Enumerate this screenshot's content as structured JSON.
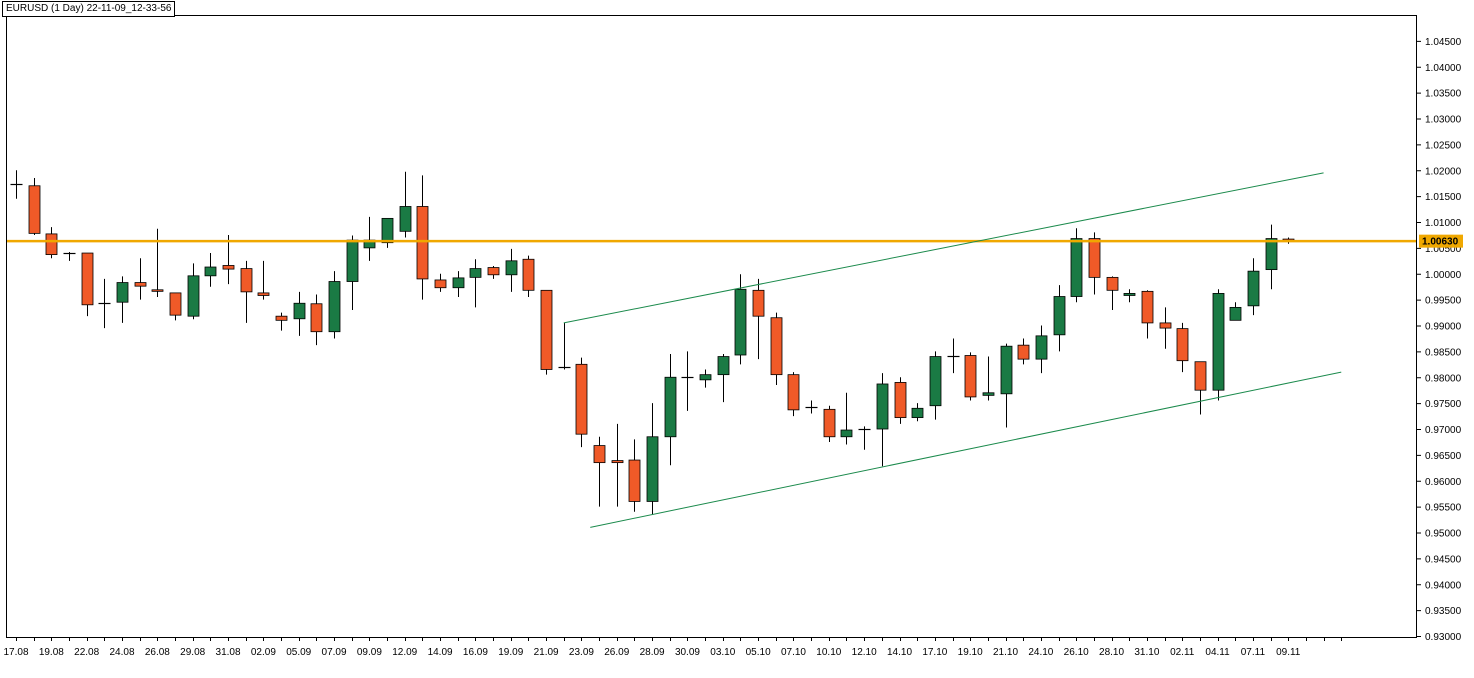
{
  "window_title": "EURUSD (1 Day) 22-11-09_12-33-56",
  "price_label": "1.00630",
  "colors": {
    "bull": "#1a7a44",
    "bear": "#f05a28",
    "level": "#f0a800",
    "channel": "#1b8a4c",
    "axis": "#000000",
    "background": "#ffffff"
  },
  "chart_data": {
    "type": "candlestick",
    "symbol": "EURUSD",
    "timeframe": "1 Day",
    "ylim": [
      0.93,
      1.05
    ],
    "y_ticks": [
      "1.04500",
      "1.04000",
      "1.03500",
      "1.03000",
      "1.02500",
      "1.02000",
      "1.01500",
      "1.01000",
      "1.00500",
      "1.00000",
      "0.99500",
      "0.99000",
      "0.98500",
      "0.98000",
      "0.97500",
      "0.97000",
      "0.96500",
      "0.96000",
      "0.95500",
      "0.95000",
      "0.94500",
      "0.94000",
      "0.93500",
      "0.93000"
    ],
    "x_labels": [
      {
        "index": 0,
        "text": "17.08"
      },
      {
        "index": 2,
        "text": "19.08"
      },
      {
        "index": 4,
        "text": "22.08"
      },
      {
        "index": 6,
        "text": "24.08"
      },
      {
        "index": 8,
        "text": "26.08"
      },
      {
        "index": 10,
        "text": "29.08"
      },
      {
        "index": 12,
        "text": "31.08"
      },
      {
        "index": 14,
        "text": "02.09"
      },
      {
        "index": 16,
        "text": "05.09"
      },
      {
        "index": 18,
        "text": "07.09"
      },
      {
        "index": 20,
        "text": "09.09"
      },
      {
        "index": 22,
        "text": "12.09"
      },
      {
        "index": 24,
        "text": "14.09"
      },
      {
        "index": 26,
        "text": "16.09"
      },
      {
        "index": 28,
        "text": "19.09"
      },
      {
        "index": 30,
        "text": "21.09"
      },
      {
        "index": 32,
        "text": "23.09"
      },
      {
        "index": 34,
        "text": "26.09"
      },
      {
        "index": 36,
        "text": "28.09"
      },
      {
        "index": 38,
        "text": "30.09"
      },
      {
        "index": 40,
        "text": "03.10"
      },
      {
        "index": 42,
        "text": "05.10"
      },
      {
        "index": 44,
        "text": "07.10"
      },
      {
        "index": 46,
        "text": "10.10"
      },
      {
        "index": 48,
        "text": "12.10"
      },
      {
        "index": 50,
        "text": "14.10"
      },
      {
        "index": 52,
        "text": "17.10"
      },
      {
        "index": 54,
        "text": "19.10"
      },
      {
        "index": 56,
        "text": "21.10"
      },
      {
        "index": 58,
        "text": "24.10"
      },
      {
        "index": 60,
        "text": "26.10"
      },
      {
        "index": 62,
        "text": "28.10"
      },
      {
        "index": 64,
        "text": "31.10"
      },
      {
        "index": 66,
        "text": "02.11"
      },
      {
        "index": 68,
        "text": "04.11"
      },
      {
        "index": 70,
        "text": "07.11"
      },
      {
        "index": 72,
        "text": "09.11"
      }
    ],
    "candles": [
      {
        "o": 1.0173,
        "h": 1.02,
        "l": 1.0145,
        "c": 1.0173
      },
      {
        "o": 1.017,
        "h": 1.0185,
        "l": 1.0075,
        "c": 1.0078
      },
      {
        "o": 1.0077,
        "h": 1.009,
        "l": 1.003,
        "c": 1.0037
      },
      {
        "o": 1.004,
        "h": 1.0042,
        "l": 1.0025,
        "c": 1.0038
      },
      {
        "o": 1.004,
        "h": 1.004,
        "l": 0.9918,
        "c": 0.994
      },
      {
        "o": 0.9942,
        "h": 0.999,
        "l": 0.9895,
        "c": 0.9944
      },
      {
        "o": 0.9945,
        "h": 0.9995,
        "l": 0.9905,
        "c": 0.9983
      },
      {
        "o": 0.9983,
        "h": 1.003,
        "l": 0.995,
        "c": 0.9976
      },
      {
        "o": 0.9969,
        "h": 1.0087,
        "l": 0.9955,
        "c": 0.9966
      },
      {
        "o": 0.9963,
        "h": 0.9963,
        "l": 0.991,
        "c": 0.992
      },
      {
        "o": 0.9918,
        "h": 1.002,
        "l": 0.9912,
        "c": 0.9996
      },
      {
        "o": 0.9996,
        "h": 1.004,
        "l": 0.9975,
        "c": 1.0013
      },
      {
        "o": 1.0016,
        "h": 1.0075,
        "l": 0.998,
        "c": 1.0009
      },
      {
        "o": 1.001,
        "h": 1.0025,
        "l": 0.9905,
        "c": 0.9965
      },
      {
        "o": 0.9963,
        "h": 1.0025,
        "l": 0.995,
        "c": 0.9958
      },
      {
        "o": 0.9918,
        "h": 0.9925,
        "l": 0.989,
        "c": 0.991
      },
      {
        "o": 0.9913,
        "h": 0.9965,
        "l": 0.988,
        "c": 0.9943
      },
      {
        "o": 0.9942,
        "h": 0.996,
        "l": 0.9862,
        "c": 0.9888
      },
      {
        "o": 0.9888,
        "h": 1.0005,
        "l": 0.9875,
        "c": 0.9985
      },
      {
        "o": 0.9985,
        "h": 1.0074,
        "l": 0.993,
        "c": 1.0065
      },
      {
        "o": 1.005,
        "h": 1.011,
        "l": 1.0025,
        "c": 1.0065
      },
      {
        "o": 1.006,
        "h": 1.0095,
        "l": 1.005,
        "c": 1.0107
      },
      {
        "o": 1.0082,
        "h": 1.0197,
        "l": 1.007,
        "c": 1.013
      },
      {
        "o": 1.013,
        "h": 1.019,
        "l": 0.995,
        "c": 0.999
      },
      {
        "o": 0.9988,
        "h": 1.0,
        "l": 0.9965,
        "c": 0.9973
      },
      {
        "o": 0.9973,
        "h": 1.0005,
        "l": 0.9955,
        "c": 0.9992
      },
      {
        "o": 0.9993,
        "h": 1.0028,
        "l": 0.9935,
        "c": 1.001
      },
      {
        "o": 1.0012,
        "h": 1.0015,
        "l": 0.999,
        "c": 0.9998
      },
      {
        "o": 0.9998,
        "h": 1.0048,
        "l": 0.9965,
        "c": 1.0025
      },
      {
        "o": 1.0028,
        "h": 1.0035,
        "l": 0.9955,
        "c": 0.9968
      },
      {
        "o": 0.9968,
        "h": 0.9968,
        "l": 0.9805,
        "c": 0.9815
      },
      {
        "o": 0.982,
        "h": 0.9905,
        "l": 0.9815,
        "c": 0.982
      },
      {
        "o": 0.9825,
        "h": 0.9838,
        "l": 0.9665,
        "c": 0.969
      },
      {
        "o": 0.9668,
        "h": 0.9685,
        "l": 0.955,
        "c": 0.9635
      },
      {
        "o": 0.9639,
        "h": 0.971,
        "l": 0.955,
        "c": 0.9635
      },
      {
        "o": 0.964,
        "h": 0.968,
        "l": 0.954,
        "c": 0.956
      },
      {
        "o": 0.956,
        "h": 0.975,
        "l": 0.9535,
        "c": 0.9685
      },
      {
        "o": 0.9685,
        "h": 0.9845,
        "l": 0.963,
        "c": 0.98
      },
      {
        "o": 0.98,
        "h": 0.985,
        "l": 0.9735,
        "c": 0.98
      },
      {
        "o": 0.9795,
        "h": 0.9815,
        "l": 0.978,
        "c": 0.9805
      },
      {
        "o": 0.9805,
        "h": 0.9845,
        "l": 0.9752,
        "c": 0.984
      },
      {
        "o": 0.9843,
        "h": 0.9999,
        "l": 0.9825,
        "c": 0.997
      },
      {
        "o": 0.9968,
        "h": 0.999,
        "l": 0.9835,
        "c": 0.9918
      },
      {
        "o": 0.9915,
        "h": 0.9925,
        "l": 0.9785,
        "c": 0.9805
      },
      {
        "o": 0.9805,
        "h": 0.981,
        "l": 0.9725,
        "c": 0.9737
      },
      {
        "o": 0.974,
        "h": 0.9755,
        "l": 0.973,
        "c": 0.9742
      },
      {
        "o": 0.9738,
        "h": 0.9745,
        "l": 0.9675,
        "c": 0.9685
      },
      {
        "o": 0.9685,
        "h": 0.977,
        "l": 0.967,
        "c": 0.9698
      },
      {
        "o": 0.97,
        "h": 0.9705,
        "l": 0.966,
        "c": 0.97
      },
      {
        "o": 0.97,
        "h": 0.9808,
        "l": 0.9628,
        "c": 0.9787
      },
      {
        "o": 0.979,
        "h": 0.98,
        "l": 0.971,
        "c": 0.9722
      },
      {
        "o": 0.9722,
        "h": 0.975,
        "l": 0.9715,
        "c": 0.974
      },
      {
        "o": 0.9745,
        "h": 0.985,
        "l": 0.9718,
        "c": 0.984
      },
      {
        "o": 0.9842,
        "h": 0.9875,
        "l": 0.9808,
        "c": 0.984
      },
      {
        "o": 0.9842,
        "h": 0.9848,
        "l": 0.9755,
        "c": 0.9762
      },
      {
        "o": 0.9765,
        "h": 0.984,
        "l": 0.9755,
        "c": 0.977
      },
      {
        "o": 0.9768,
        "h": 0.9865,
        "l": 0.9703,
        "c": 0.986
      },
      {
        "o": 0.9862,
        "h": 0.9875,
        "l": 0.9825,
        "c": 0.9835
      },
      {
        "o": 0.9835,
        "h": 0.99,
        "l": 0.9808,
        "c": 0.988
      },
      {
        "o": 0.9882,
        "h": 0.9978,
        "l": 0.985,
        "c": 0.9956
      },
      {
        "o": 0.9956,
        "h": 1.0088,
        "l": 0.9945,
        "c": 1.0068
      },
      {
        "o": 1.0068,
        "h": 1.008,
        "l": 0.996,
        "c": 0.9993
      },
      {
        "o": 0.9993,
        "h": 0.9995,
        "l": 0.993,
        "c": 0.9968
      },
      {
        "o": 0.9958,
        "h": 0.997,
        "l": 0.9945,
        "c": 0.9962
      },
      {
        "o": 0.9966,
        "h": 0.9968,
        "l": 0.9875,
        "c": 0.9905
      },
      {
        "o": 0.9905,
        "h": 0.9935,
        "l": 0.9855,
        "c": 0.9895
      },
      {
        "o": 0.9894,
        "h": 0.9905,
        "l": 0.981,
        "c": 0.9832
      },
      {
        "o": 0.983,
        "h": 0.983,
        "l": 0.9728,
        "c": 0.9775
      },
      {
        "o": 0.9775,
        "h": 0.997,
        "l": 0.9755,
        "c": 0.9962
      },
      {
        "o": 0.991,
        "h": 0.9945,
        "l": 0.991,
        "c": 0.9935
      },
      {
        "o": 0.9938,
        "h": 1.003,
        "l": 0.992,
        "c": 1.0005
      },
      {
        "o": 1.0008,
        "h": 1.0095,
        "l": 0.997,
        "c": 1.0068
      },
      {
        "o": 1.0067,
        "h": 1.007,
        "l": 1.0058,
        "c": 1.0063
      }
    ],
    "horizontal_line": 1.0063,
    "channel": {
      "upper": [
        {
          "index": 31,
          "price": 0.9905
        },
        {
          "index": 74,
          "price": 1.0195
        }
      ],
      "lower": [
        {
          "index": 32.5,
          "price": 0.951
        },
        {
          "index": 75,
          "price": 0.981
        }
      ]
    }
  }
}
